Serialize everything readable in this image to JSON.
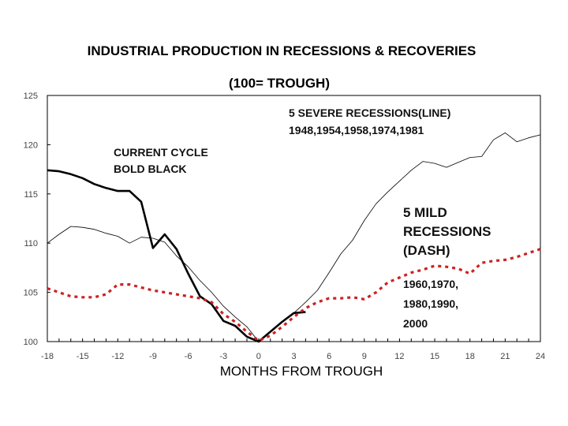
{
  "chart_data": {
    "type": "line",
    "title": "INDUSTRIAL PRODUCTION IN RECESSIONS & RECOVERIES",
    "subtitle": "(100= TROUGH)",
    "xlabel": "MONTHS FROM TROUGH",
    "ylabel": "",
    "xlim": [
      -18,
      24
    ],
    "ylim": [
      100,
      125
    ],
    "x_ticks": [
      -18,
      -15,
      -12,
      -9,
      -6,
      -3,
      0,
      3,
      6,
      9,
      12,
      15,
      18,
      21,
      24
    ],
    "y_ticks": [
      100,
      105,
      110,
      115,
      120,
      125
    ],
    "grid": false,
    "annotations": {
      "severe_line1": "5 SEVERE RECESSIONS(LINE)",
      "severe_line2": "1948,1954,1958,1974,1981",
      "current_line1": "CURRENT CYCLE",
      "current_line2": "BOLD BLACK",
      "mild_line1": "5 MILD",
      "mild_line2": "RECESSIONS",
      "mild_line3": "(DASH)",
      "mild_years1": "1960,1970,",
      "mild_years2": "1980,1990,",
      "mild_years3": "2000"
    },
    "series": [
      {
        "name": "5 Severe Recessions (line)",
        "style": "thin",
        "color": "#000000",
        "points": [
          [
            -18,
            110.0
          ],
          [
            -17,
            110.9
          ],
          [
            -16,
            111.7
          ],
          [
            -15,
            111.6
          ],
          [
            -14,
            111.4
          ],
          [
            -13,
            111.0
          ],
          [
            -12,
            110.7
          ],
          [
            -11,
            110.0
          ],
          [
            -10,
            110.6
          ],
          [
            -9,
            110.5
          ],
          [
            -8,
            110.1
          ],
          [
            -7,
            108.7
          ],
          [
            -6,
            107.6
          ],
          [
            -5,
            106.2
          ],
          [
            -4,
            105.0
          ],
          [
            -3,
            103.6
          ],
          [
            -2,
            102.5
          ],
          [
            -1,
            101.5
          ],
          [
            0,
            100.0
          ],
          [
            1,
            101.0
          ],
          [
            2,
            102.0
          ],
          [
            3,
            102.9
          ],
          [
            4,
            104.0
          ],
          [
            5,
            105.2
          ],
          [
            6,
            107.0
          ],
          [
            7,
            108.9
          ],
          [
            8,
            110.3
          ],
          [
            9,
            112.3
          ],
          [
            10,
            114.0
          ],
          [
            11,
            115.2
          ],
          [
            12,
            116.3
          ],
          [
            13,
            117.4
          ],
          [
            14,
            118.3
          ],
          [
            15,
            118.1
          ],
          [
            16,
            117.7
          ],
          [
            17,
            118.2
          ],
          [
            18,
            118.7
          ],
          [
            19,
            118.8
          ],
          [
            20,
            120.5
          ],
          [
            21,
            121.2
          ],
          [
            22,
            120.3
          ],
          [
            23,
            120.7
          ],
          [
            24,
            121.0
          ]
        ]
      },
      {
        "name": "Current Cycle (bold black)",
        "style": "bold",
        "color": "#000000",
        "points": [
          [
            -18,
            117.4
          ],
          [
            -17,
            117.3
          ],
          [
            -16,
            117.0
          ],
          [
            -15,
            116.6
          ],
          [
            -14,
            116.0
          ],
          [
            -13,
            115.6
          ],
          [
            -12,
            115.3
          ],
          [
            -11,
            115.3
          ],
          [
            -10,
            114.2
          ],
          [
            -9,
            109.5
          ],
          [
            -8,
            110.9
          ],
          [
            -7,
            109.4
          ],
          [
            -6,
            106.9
          ],
          [
            -5,
            104.6
          ],
          [
            -4,
            103.8
          ],
          [
            -3,
            102.1
          ],
          [
            -2,
            101.6
          ],
          [
            -1,
            100.5
          ],
          [
            0,
            100.0
          ],
          [
            1,
            101.0
          ],
          [
            2,
            102.0
          ],
          [
            3,
            102.9
          ],
          [
            4,
            103.0
          ]
        ]
      },
      {
        "name": "5 Mild Recessions (dash)",
        "style": "dash",
        "color": "#cc2222",
        "points": [
          [
            -18,
            105.4
          ],
          [
            -17,
            105.0
          ],
          [
            -16,
            104.6
          ],
          [
            -15,
            104.5
          ],
          [
            -14,
            104.5
          ],
          [
            -13,
            104.8
          ],
          [
            -12,
            105.8
          ],
          [
            -11,
            105.8
          ],
          [
            -10,
            105.5
          ],
          [
            -9,
            105.2
          ],
          [
            -8,
            105.0
          ],
          [
            -7,
            104.8
          ],
          [
            -6,
            104.6
          ],
          [
            -5,
            104.4
          ],
          [
            -4,
            104.0
          ],
          [
            -3,
            102.8
          ],
          [
            -2,
            102.0
          ],
          [
            -1,
            101.0
          ],
          [
            0,
            100.1
          ],
          [
            1,
            100.6
          ],
          [
            2,
            101.5
          ],
          [
            3,
            102.5
          ],
          [
            4,
            103.4
          ],
          [
            5,
            104.0
          ],
          [
            6,
            104.4
          ],
          [
            7,
            104.4
          ],
          [
            8,
            104.5
          ],
          [
            9,
            104.3
          ],
          [
            10,
            105.0
          ],
          [
            11,
            106.0
          ],
          [
            12,
            106.5
          ],
          [
            13,
            107.0
          ],
          [
            14,
            107.3
          ],
          [
            15,
            107.7
          ],
          [
            16,
            107.6
          ],
          [
            17,
            107.4
          ],
          [
            18,
            106.9
          ],
          [
            19,
            108.0
          ],
          [
            20,
            108.2
          ],
          [
            21,
            108.3
          ],
          [
            22,
            108.6
          ],
          [
            23,
            109.0
          ],
          [
            24,
            109.4
          ]
        ]
      }
    ]
  }
}
